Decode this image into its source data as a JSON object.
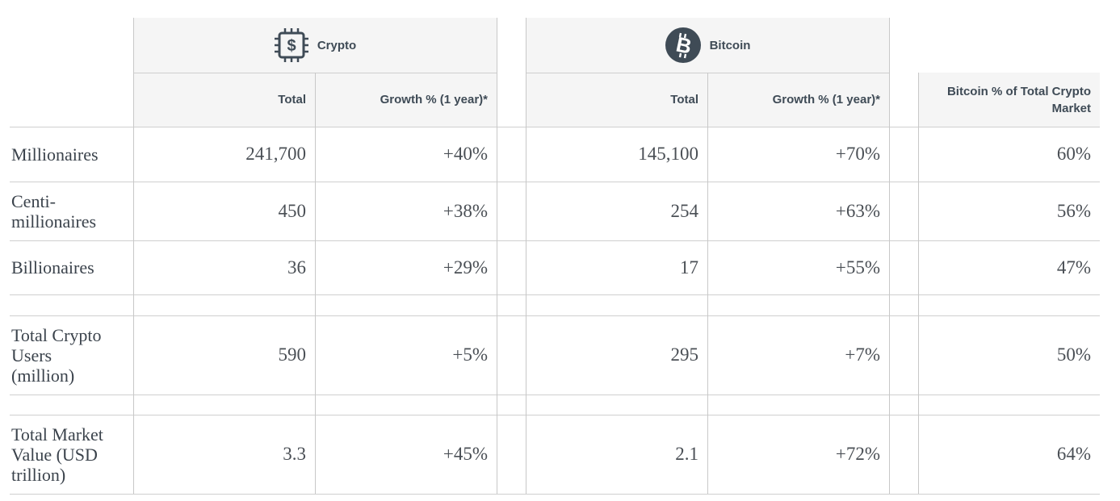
{
  "groups": {
    "crypto": {
      "title": "Crypto",
      "icon": "chip-dollar-icon"
    },
    "bitcoin": {
      "title": "Bitcoin",
      "icon": "bitcoin-icon"
    }
  },
  "columns": {
    "crypto_total": "Total",
    "crypto_growth": "Growth % (1 year)*",
    "bitcoin_total": "Total",
    "bitcoin_growth": "Growth % (1 year)*",
    "share": "Bitcoin % of Total Crypto Market"
  },
  "rows": [
    {
      "label": "Millionaires",
      "crypto_total": "241,700",
      "crypto_growth": "+40%",
      "bitcoin_total": "145,100",
      "bitcoin_growth": "+70%",
      "share": "60%"
    },
    {
      "label": "Centi-millionaires",
      "crypto_total": "450",
      "crypto_growth": "+38%",
      "bitcoin_total": "254",
      "bitcoin_growth": "+63%",
      "share": "56%"
    },
    {
      "label": "Billionaires",
      "crypto_total": "36",
      "crypto_growth": "+29%",
      "bitcoin_total": "17",
      "bitcoin_growth": "+55%",
      "share": "47%"
    },
    {
      "label": "Total Crypto Users (million)",
      "crypto_total": "590",
      "crypto_growth": "+5%",
      "bitcoin_total": "295",
      "bitcoin_growth": "+7%",
      "share": "50%"
    },
    {
      "label": "Total Market Value (USD trillion)",
      "crypto_total": "3.3",
      "crypto_growth": "+45%",
      "bitcoin_total": "2.1",
      "bitcoin_growth": "+72%",
      "share": "64%"
    }
  ]
}
